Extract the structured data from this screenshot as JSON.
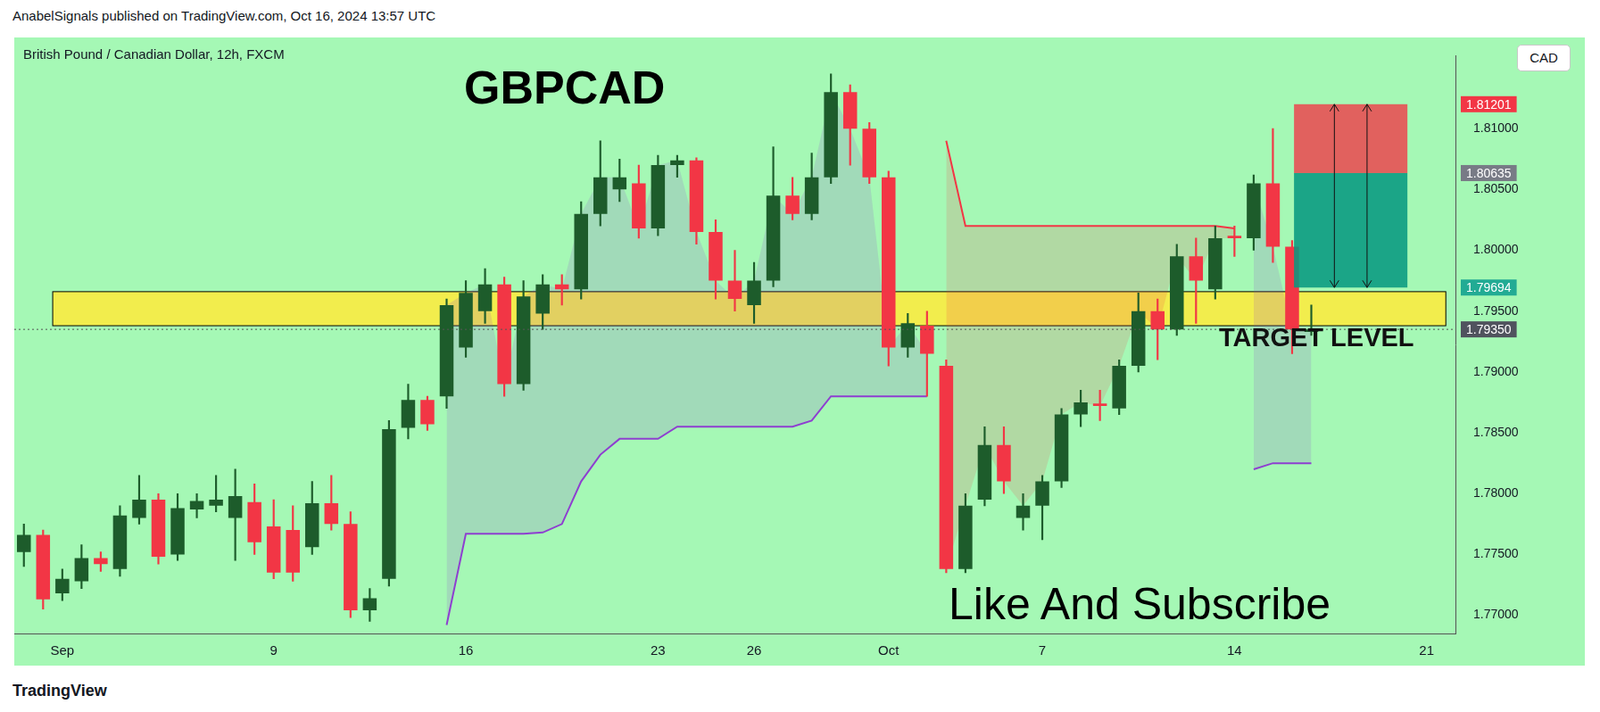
{
  "header": "AnabelSignals published on TradingView.com, Oct 16, 2024 13:57 UTC",
  "footer": "TradingView",
  "chart_data": {
    "type": "candlestick",
    "title": "GBPCAD",
    "subtitle": "British Pound / Canadian Dollar, 12h, FXCM",
    "currency": "CAD",
    "annotations": [
      "Like And Subscribe"
    ],
    "grid": false,
    "categories": [
      null,
      null,
      "Sep",
      null,
      null,
      null,
      null,
      null,
      null,
      null,
      null,
      null,
      null,
      "9",
      null,
      null,
      null,
      null,
      null,
      null,
      null,
      null,
      null,
      "16",
      null,
      null,
      null,
      null,
      null,
      null,
      null,
      null,
      null,
      "23",
      null,
      null,
      null,
      null,
      "26",
      null,
      null,
      null,
      null,
      null,
      null,
      "Oct",
      null,
      null,
      null,
      null,
      null,
      null,
      null,
      "7",
      null,
      null,
      null,
      null,
      null,
      null,
      null,
      null,
      null,
      "14",
      null,
      null,
      null,
      null,
      null,
      null,
      null,
      null,
      null,
      "21",
      null
    ],
    "open": [
      1.7752,
      1.7766,
      1.7718,
      1.7728,
      1.7747,
      1.7738,
      1.778,
      1.7795,
      1.775,
      1.7787,
      1.779,
      1.778,
      1.7793,
      1.7773,
      1.777,
      1.7756,
      1.7792,
      1.7775,
      1.7704,
      1.773,
      1.7854,
      1.7877,
      1.788,
      1.792,
      1.795,
      1.7972,
      1.789,
      1.7948,
      1.7972,
      1.7968,
      1.803,
      1.805,
      1.8055,
      1.8018,
      1.807,
      1.8074,
      1.8015,
      1.7975,
      1.7955,
      1.7975,
      1.8045,
      1.803,
      1.806,
      1.813,
      1.81,
      1.806,
      1.792,
      1.7938,
      1.7905,
      1.7738,
      1.7795,
      1.784,
      1.778,
      1.779,
      1.781,
      1.7865,
      1.7874,
      1.787,
      1.7905,
      1.795,
      1.7935,
      1.7995,
      1.7968,
      1.8012,
      1.801,
      1.8055,
      1.8003,
      1.7933,
      null,
      null,
      null,
      null,
      null,
      null,
      null
    ],
    "high": [
      1.7775,
      1.777,
      1.7738,
      1.7758,
      1.7752,
      1.779,
      1.7815,
      1.78,
      1.78,
      1.78,
      1.7815,
      1.782,
      1.7808,
      1.7795,
      1.779,
      1.781,
      1.7815,
      1.7785,
      1.7722,
      1.786,
      1.789,
      1.788,
      1.796,
      1.7975,
      1.7985,
      1.7978,
      1.7975,
      1.798,
      1.798,
      1.804,
      1.809,
      1.8075,
      1.807,
      1.8078,
      1.8078,
      1.8076,
      1.8025,
      1.8,
      1.799,
      1.8085,
      1.806,
      1.808,
      1.8145,
      1.8136,
      1.8105,
      1.8065,
      1.7948,
      1.795,
      1.791,
      1.78,
      1.7855,
      1.7855,
      1.78,
      1.7815,
      1.787,
      1.7885,
      1.7885,
      1.791,
      1.7965,
      1.796,
      1.8005,
      1.801,
      1.802,
      1.802,
      1.8062,
      1.81,
      1.8008,
      1.7955,
      null,
      null,
      null,
      null,
      null,
      null,
      null
    ],
    "low": [
      1.774,
      1.7705,
      1.7712,
      1.7722,
      1.7736,
      1.7732,
      1.7775,
      1.7742,
      1.7745,
      1.778,
      1.7785,
      1.7745,
      1.775,
      1.773,
      1.7728,
      1.775,
      1.777,
      1.7698,
      1.7695,
      1.7724,
      1.7845,
      1.7852,
      1.787,
      1.7912,
      1.794,
      1.788,
      1.7885,
      1.7935,
      1.7955,
      1.796,
      1.802,
      1.804,
      1.801,
      1.8012,
      1.806,
      1.8005,
      1.796,
      1.795,
      1.794,
      1.797,
      1.8025,
      1.8025,
      1.8055,
      1.807,
      1.8055,
      1.7905,
      1.7912,
      1.788,
      1.7735,
      1.7735,
      1.779,
      1.78,
      1.777,
      1.7762,
      1.7805,
      1.7855,
      1.786,
      1.7865,
      1.79,
      1.791,
      1.793,
      1.794,
      1.796,
      1.7995,
      1.8,
      1.799,
      1.7915,
      1.793,
      null,
      null,
      null,
      null,
      null,
      null,
      null
    ],
    "close": [
      1.7766,
      1.7713,
      1.773,
      1.7747,
      1.7742,
      1.7782,
      1.7795,
      1.7748,
      1.7788,
      1.7794,
      1.7795,
      1.7798,
      1.776,
      1.7735,
      1.7735,
      1.7792,
      1.7775,
      1.7704,
      1.7714,
      1.7853,
      1.7877,
      1.7857,
      1.7955,
      1.7965,
      1.7972,
      1.789,
      1.7962,
      1.7972,
      1.7968,
      1.803,
      1.806,
      1.806,
      1.8018,
      1.807,
      1.8074,
      1.8015,
      1.7975,
      1.796,
      1.7975,
      1.8045,
      1.803,
      1.806,
      1.813,
      1.81,
      1.806,
      1.792,
      1.794,
      1.7915,
      1.7738,
      1.779,
      1.784,
      1.781,
      1.779,
      1.781,
      1.7865,
      1.7875,
      1.7872,
      1.7905,
      1.795,
      1.7935,
      1.7995,
      1.7975,
      1.801,
      1.801,
      1.8055,
      1.8003,
      1.7935,
      1.7935,
      null,
      null,
      null,
      null,
      null,
      null,
      null
    ],
    "bands": [
      {
        "color": "#8e3fd0",
        "values": [
          null,
          null,
          null,
          null,
          null,
          null,
          null,
          null,
          null,
          null,
          null,
          null,
          null,
          null,
          null,
          null,
          null,
          null,
          null,
          null,
          null,
          null,
          1.7692,
          1.7767,
          1.7767,
          1.7767,
          1.7767,
          1.7768,
          1.7775,
          1.781,
          1.7832,
          1.7845,
          1.7845,
          1.7845,
          1.7855,
          1.7855,
          1.7855,
          1.7855,
          1.7855,
          1.7855,
          1.7855,
          1.786,
          1.788,
          1.788,
          1.788,
          1.788,
          1.788,
          1.788,
          null,
          null,
          null,
          null,
          null,
          null,
          null,
          null,
          null,
          null,
          null,
          null,
          null,
          null,
          null,
          null,
          1.782,
          1.7825,
          1.7825,
          1.7825,
          null,
          null,
          null,
          null,
          null,
          null,
          null
        ]
      },
      {
        "color": "#f23645",
        "values": [
          null,
          null,
          null,
          null,
          null,
          null,
          null,
          null,
          null,
          null,
          null,
          null,
          null,
          null,
          null,
          null,
          null,
          null,
          null,
          null,
          null,
          null,
          null,
          null,
          null,
          null,
          null,
          null,
          null,
          null,
          null,
          null,
          null,
          null,
          null,
          null,
          null,
          null,
          null,
          null,
          null,
          null,
          null,
          null,
          null,
          null,
          null,
          null,
          1.809,
          1.802,
          1.802,
          1.802,
          1.802,
          1.802,
          1.802,
          1.802,
          1.802,
          1.802,
          1.802,
          1.802,
          1.802,
          1.802,
          1.802,
          1.8018,
          null,
          null,
          null,
          null,
          null,
          null,
          null,
          null,
          null,
          null,
          null
        ]
      }
    ],
    "zone": {
      "values": [
        1.7938,
        1.7966
      ],
      "color": "#ffeb3b",
      "label": "TARGET LEVEL"
    },
    "position": {
      "entry": 1.80635,
      "stop": 1.81201,
      "target": 1.79694
    },
    "price_labels": {
      "values": [
        1.81201,
        1.80635,
        1.79694,
        {
          "value": 1.7935,
          "label": "1.79350"
        }
      ],
      "colors": [
        "#f23645",
        "#787b86",
        "#22ab94",
        "#50535e"
      ]
    },
    "ylim": [
      1.7685,
      1.816
    ],
    "yticks": [
      {
        "value": 1.77,
        "label": "1.77000"
      },
      {
        "value": 1.775,
        "label": "1.77500"
      },
      {
        "value": 1.78,
        "label": "1.78000"
      },
      {
        "value": 1.785,
        "label": "1.78500"
      },
      {
        "value": 1.79,
        "label": "1.79000"
      },
      {
        "value": 1.795,
        "label": "1.79500"
      },
      {
        "value": 1.8,
        "label": "1.80000"
      },
      {
        "value": 1.805,
        "label": "1.80500"
      },
      {
        "value": 1.81,
        "label": "1.81000"
      }
    ]
  }
}
